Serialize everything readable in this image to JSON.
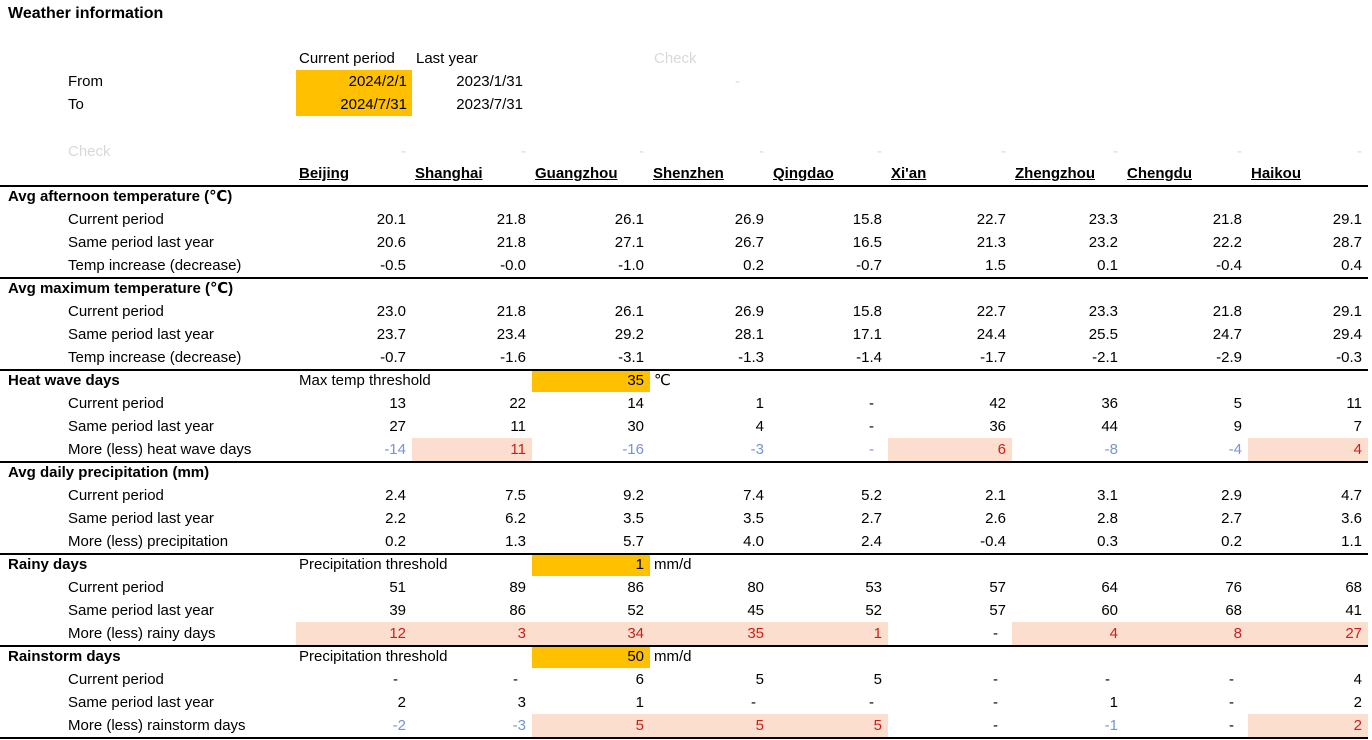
{
  "title": "Weather information",
  "colors": {
    "input_highlight": "#FFC000",
    "increase_fill": "#FBDECE",
    "increase_text": "#C9201B",
    "decrease_text": "#7595D5",
    "faint_text": "#D9D9D9"
  },
  "form": {
    "headers": {
      "current": "Current period",
      "last": "Last year"
    },
    "from": {
      "label": "From",
      "current": "2024/2/1",
      "last": "2023/1/31"
    },
    "to": {
      "label": "To",
      "current": "2024/7/31",
      "last": "2023/7/31"
    },
    "check": {
      "label": "Check",
      "value": "-"
    }
  },
  "check_row": {
    "label": "Check",
    "values": [
      "-",
      "-",
      "-",
      "-",
      "-",
      "-",
      "-",
      "-",
      "-"
    ]
  },
  "table": {
    "cities": [
      "Beijing",
      "Shanghai",
      "Guangzhou",
      "Shenzhen",
      "Qingdao",
      "Xi'an",
      "Zhengzhou",
      "Chengdu",
      "Haikou"
    ],
    "sections": [
      {
        "name": "Avg afternoon temperature (℃)",
        "rows": [
          {
            "label": "Current period",
            "values": [
              "20.1",
              "21.8",
              "26.1",
              "26.9",
              "15.8",
              "22.7",
              "23.3",
              "21.8",
              "29.1"
            ]
          },
          {
            "label": "Same period last year",
            "values": [
              "20.6",
              "21.8",
              "27.1",
              "26.7",
              "16.5",
              "21.3",
              "23.2",
              "22.2",
              "28.7"
            ]
          },
          {
            "label": "Temp increase (decrease)",
            "values": [
              "-0.5",
              "-0.0",
              "-1.0",
              "0.2",
              "-0.7",
              "1.5",
              "0.1",
              "-0.4",
              "0.4"
            ]
          }
        ]
      },
      {
        "name": "Avg maximum temperature (℃)",
        "rows": [
          {
            "label": "Current period",
            "values": [
              "23.0",
              "21.8",
              "26.1",
              "26.9",
              "15.8",
              "22.7",
              "23.3",
              "21.8",
              "29.1"
            ]
          },
          {
            "label": "Same period last year",
            "values": [
              "23.7",
              "23.4",
              "29.2",
              "28.1",
              "17.1",
              "24.4",
              "25.5",
              "24.7",
              "29.4"
            ]
          },
          {
            "label": "Temp increase (decrease)",
            "values": [
              "-0.7",
              "-1.6",
              "-3.1",
              "-1.3",
              "-1.4",
              "-1.7",
              "-2.1",
              "-2.9",
              "-0.3"
            ]
          }
        ]
      },
      {
        "name": "Heat wave days",
        "threshold": {
          "label": "Max temp threshold",
          "value": "35",
          "unit": "℃"
        },
        "rows": [
          {
            "label": "Current period",
            "values": [
              "13",
              "22",
              "14",
              "1",
              "-",
              "42",
              "36",
              "5",
              "11"
            ]
          },
          {
            "label": "Same period last year",
            "values": [
              "27",
              "11",
              "30",
              "4",
              "-",
              "36",
              "44",
              "9",
              "7"
            ]
          },
          {
            "label": "More (less) heat wave days",
            "values": [
              "-14",
              "11",
              "-16",
              "-3",
              "-",
              "6",
              "-8",
              "-4",
              "4"
            ],
            "text": [
              "dec",
              "inc",
              "dec",
              "dec",
              "dec",
              "inc",
              "dec",
              "dec",
              "inc"
            ],
            "fill": [
              0,
              1,
              0,
              0,
              0,
              1,
              0,
              0,
              1
            ]
          }
        ]
      },
      {
        "name": "Avg daily precipitation (mm)",
        "rows": [
          {
            "label": "Current period",
            "values": [
              "2.4",
              "7.5",
              "9.2",
              "7.4",
              "5.2",
              "2.1",
              "3.1",
              "2.9",
              "4.7"
            ]
          },
          {
            "label": "Same period last year",
            "values": [
              "2.2",
              "6.2",
              "3.5",
              "3.5",
              "2.7",
              "2.6",
              "2.8",
              "2.7",
              "3.6"
            ]
          },
          {
            "label": "More (less) precipitation",
            "values": [
              "0.2",
              "1.3",
              "5.7",
              "4.0",
              "2.4",
              "-0.4",
              "0.3",
              "0.2",
              "1.1"
            ]
          }
        ]
      },
      {
        "name": "Rainy days",
        "threshold": {
          "label": "Precipitation threshold",
          "value": "1",
          "unit": "mm/d"
        },
        "rows": [
          {
            "label": "Current period",
            "values": [
              "51",
              "89",
              "86",
              "80",
              "53",
              "57",
              "64",
              "76",
              "68"
            ]
          },
          {
            "label": "Same period last year",
            "values": [
              "39",
              "86",
              "52",
              "45",
              "52",
              "57",
              "60",
              "68",
              "41"
            ]
          },
          {
            "label": "More (less) rainy days",
            "values": [
              "12",
              "3",
              "34",
              "35",
              "1",
              "-",
              "4",
              "8",
              "27"
            ],
            "text": [
              "inc",
              "inc",
              "inc",
              "inc",
              "inc",
              null,
              "inc",
              "inc",
              "inc"
            ],
            "fill": [
              1,
              1,
              1,
              1,
              1,
              0,
              1,
              1,
              1
            ]
          }
        ]
      },
      {
        "name": "Rainstorm days",
        "threshold": {
          "label": "Precipitation threshold",
          "value": "50",
          "unit": "mm/d"
        },
        "rows": [
          {
            "label": "Current period",
            "values": [
              "-",
              "-",
              "6",
              "5",
              "5",
              "-",
              "-",
              "-",
              "4"
            ]
          },
          {
            "label": "Same period last year",
            "values": [
              "2",
              "3",
              "1",
              "-",
              "-",
              "-",
              "1",
              "-",
              "2"
            ]
          },
          {
            "label": "More (less) rainstorm days",
            "values": [
              "-2",
              "-3",
              "5",
              "5",
              "5",
              "-",
              "-1",
              "-",
              "2"
            ],
            "text": [
              "dec",
              "dec",
              "inc",
              "inc",
              "inc",
              null,
              "dec",
              null,
              "inc"
            ],
            "fill": [
              0,
              0,
              1,
              1,
              1,
              0,
              0,
              0,
              1
            ]
          }
        ]
      }
    ]
  }
}
